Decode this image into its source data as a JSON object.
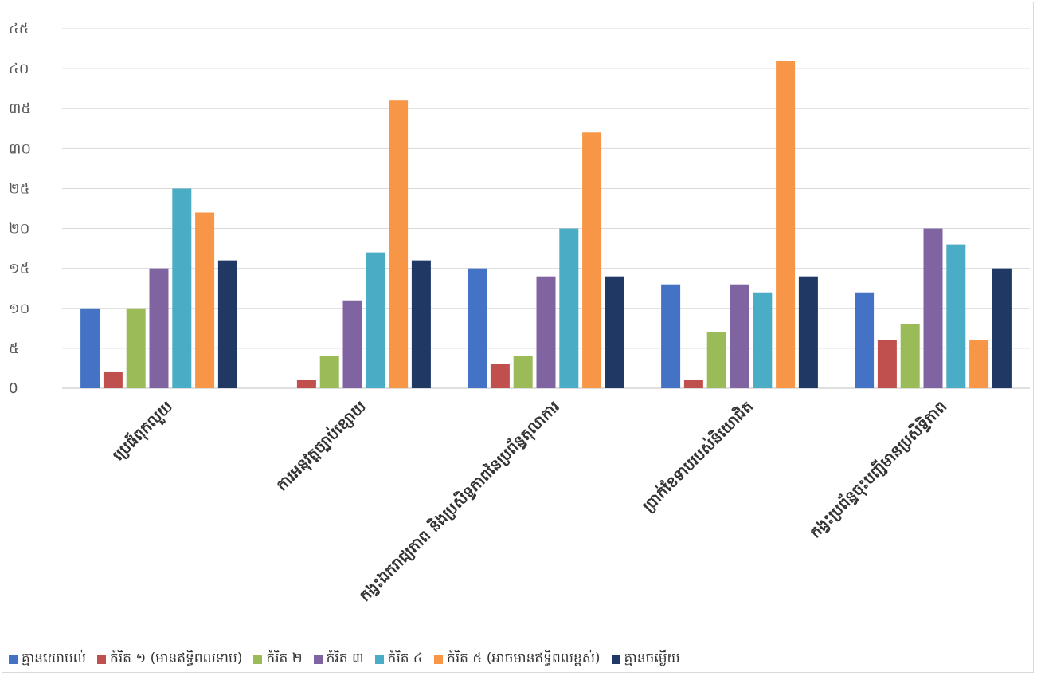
{
  "chart_data": {
    "type": "bar",
    "categories": [
      "ប្រេផ៍ពុកលួយ",
      "ការអនុវត្តច្បាប់ខ្សោយ",
      "កង្វះឯករាជ្យភាព និងប្រសិទ្ធភាពនៃប្រព័ន្ធតុលាការ",
      "ប្រាក់ខែទាបរបស់និយោជិត",
      "កង្វះប្រព័ន្ធចុះបញ្ជីមានប្រសិទ្ធិភាព"
    ],
    "series": [
      {
        "name": "គ្មានយោបល់",
        "color": "#4472c4",
        "values": [
          10,
          0,
          15,
          13,
          12
        ]
      },
      {
        "name": "កំរិត ១ (មានឥទ្ធិពលទាប)",
        "color": "#c0504d",
        "values": [
          2,
          1,
          3,
          1,
          6
        ]
      },
      {
        "name": "កំរិត ២",
        "color": "#9bbb59",
        "values": [
          10,
          4,
          4,
          7,
          8
        ]
      },
      {
        "name": "កំរិត ៣",
        "color": "#8064a2",
        "values": [
          15,
          11,
          14,
          13,
          20
        ]
      },
      {
        "name": "កំរិត ៤",
        "color": "#4bacc6",
        "values": [
          25,
          17,
          20,
          12,
          18
        ]
      },
      {
        "name": "កំរិត ៥ (អាចមានឥទ្ធិពលខ្ពស់)",
        "color": "#f79646",
        "values": [
          22,
          36,
          32,
          41,
          6
        ]
      },
      {
        "name": "គ្មានចម្លើយ",
        "color": "#1f3864",
        "values": [
          16,
          16,
          14,
          14,
          15
        ]
      }
    ],
    "ylim": [
      0,
      45
    ],
    "yticks": [
      0,
      5,
      10,
      15,
      20,
      25,
      30,
      35,
      40,
      45
    ],
    "ytick_labels": [
      "0",
      "៥",
      "១០",
      "១៥",
      "២០",
      "២៥",
      "៣០",
      "៣៥",
      "៤០",
      "៤៥"
    ],
    "title": "",
    "xlabel": "",
    "ylabel": "",
    "grid": true,
    "legend_position": "bottom"
  }
}
